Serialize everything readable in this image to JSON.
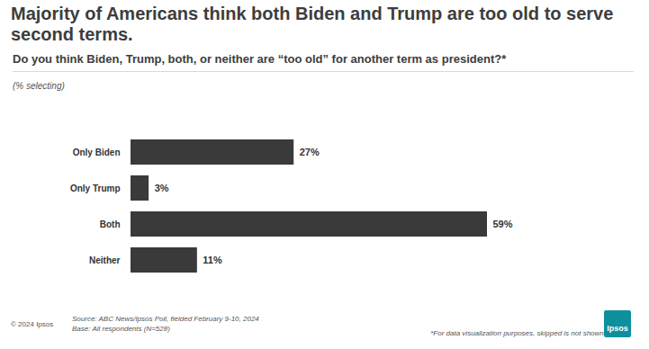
{
  "chart_data": {
    "type": "bar",
    "title": "Majority of Americans think both Biden and Trump are too old to serve second terms.",
    "subtitle": "Do you think Biden, Trump, both, or neither are “too old” for another term as president?*",
    "note": "(% selecting)",
    "categories": [
      "Only Biden",
      "Only Trump",
      "Both",
      "Neither"
    ],
    "values": [
      27,
      3,
      59,
      11
    ],
    "value_labels": [
      "27%",
      "3%",
      "59%",
      "11%"
    ],
    "color": "#3a3a3a",
    "orientation": "horizontal",
    "data_labels": true,
    "tick_labels": "y",
    "grid": false,
    "copyright": "© 2024 Ipsos",
    "source": "Source: ABC News/Ipsos Poll, fielded February 9-10, 2024",
    "base": "Base: All respondents (N=528)",
    "footnote": "*For data visualization purposes, skipped is not shown.",
    "logo": "Ipsos"
  }
}
